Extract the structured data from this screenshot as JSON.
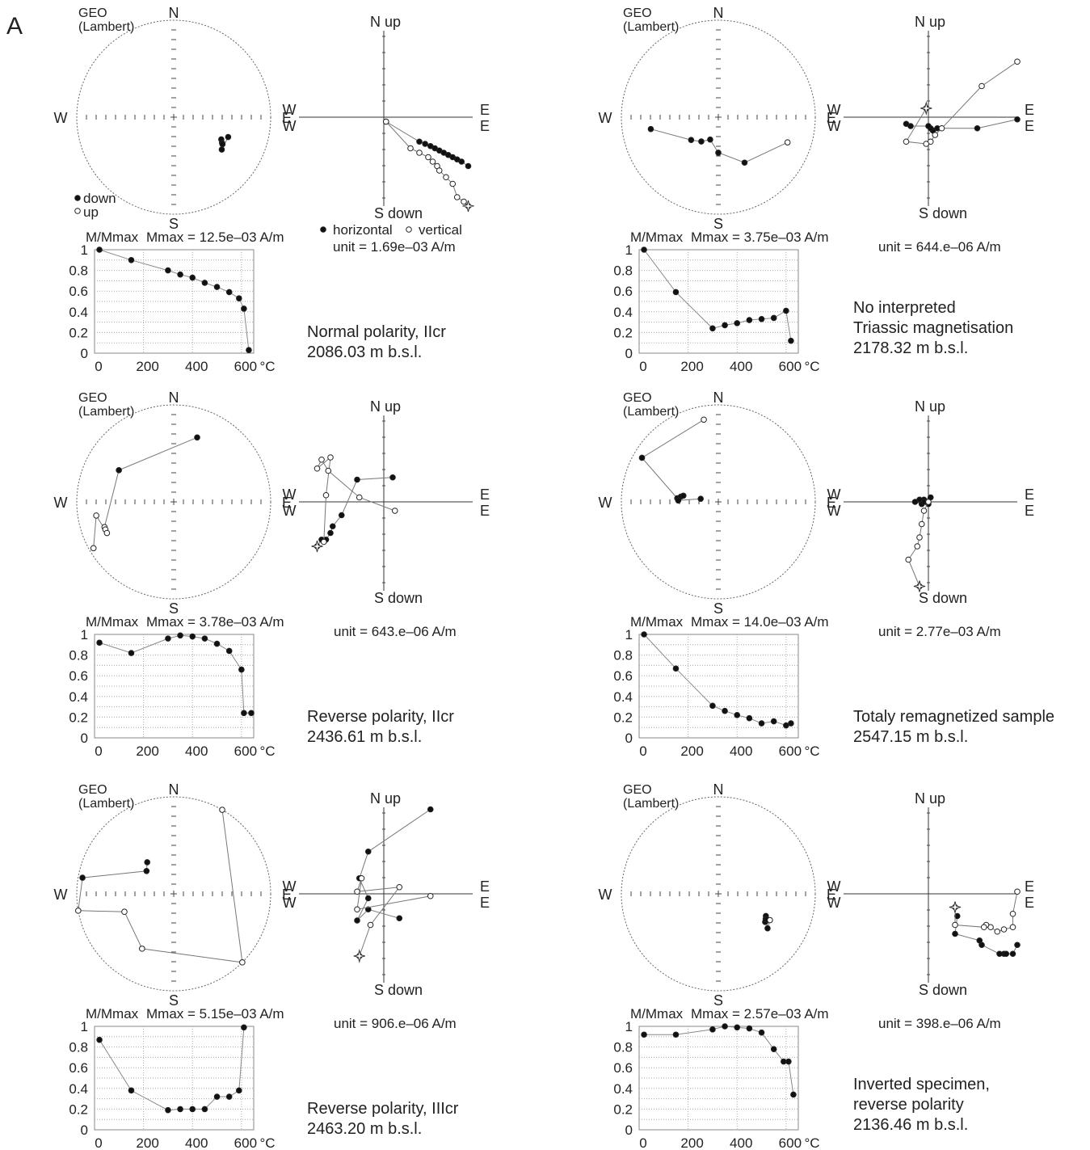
{
  "figure_label": "A",
  "common": {
    "geo": "GEO",
    "lambert": "(Lambert)",
    "dir": {
      "N": "N",
      "S": "S",
      "E": "E",
      "W": "W"
    },
    "nup": "N up",
    "sdown": "S down",
    "legend_down": "down",
    "legend_up": "up",
    "legend_horizontal": "horizontal",
    "legend_vertical": "vertical",
    "mag_label": "M/Mmax",
    "degC": "°C",
    "y_ticks": [
      "1",
      "0.8",
      "0.6",
      "0.4",
      "0.2",
      "0"
    ],
    "x_ticks": [
      "0",
      "200",
      "400",
      "600"
    ]
  },
  "chart_data": [
    {
      "type": "scatter",
      "title": "Normal polarity, IIcr",
      "depth": "2086.03 m b.s.l.",
      "unit": "unit = 1.69e–03 A/m",
      "mmax": "Mmax = 12.5e–03 A/m",
      "stereonet": [
        {
          "dec": 115,
          "inc": 45,
          "filled": true
        },
        {
          "dec": 118,
          "inc": 43,
          "filled": true
        },
        {
          "dec": 119,
          "inc": 42,
          "filled": true
        },
        {
          "dec": 124,
          "inc": 40,
          "filled": true
        },
        {
          "dec": 110,
          "inc": 40,
          "filled": true
        }
      ],
      "zijderveld": {
        "horizontal": [
          [
            0.05,
            -0.1
          ],
          [
            0.8,
            -0.55
          ],
          [
            0.93,
            -0.6
          ],
          [
            1.05,
            -0.65
          ],
          [
            1.15,
            -0.7
          ],
          [
            1.25,
            -0.75
          ],
          [
            1.35,
            -0.8
          ],
          [
            1.45,
            -0.85
          ],
          [
            1.55,
            -0.9
          ],
          [
            1.65,
            -0.95
          ],
          [
            1.75,
            -1.0
          ],
          [
            1.9,
            -1.1
          ]
        ],
        "vertical": [
          [
            0.05,
            -0.1
          ],
          [
            0.6,
            -0.7
          ],
          [
            0.8,
            -0.8
          ],
          [
            1.0,
            -0.9
          ],
          [
            1.1,
            -1.0
          ],
          [
            1.2,
            -1.1
          ],
          [
            1.25,
            -1.2
          ],
          [
            1.4,
            -1.35
          ],
          [
            1.55,
            -1.5
          ],
          [
            1.65,
            -1.8
          ],
          [
            1.8,
            -1.9
          ],
          [
            1.9,
            -2.0
          ]
        ],
        "start_star": "vertical"
      },
      "demag": {
        "temp": [
          20,
          150,
          300,
          350,
          400,
          450,
          500,
          550,
          590,
          610,
          630
        ],
        "m": [
          1.0,
          0.9,
          0.8,
          0.76,
          0.73,
          0.68,
          0.64,
          0.59,
          0.53,
          0.43,
          0.03
        ],
        "xlim": [
          0,
          650
        ],
        "ylim": [
          0,
          1
        ]
      }
    },
    {
      "type": "scatter",
      "title": "No interpreted",
      "title2": "Triassic magnetisation",
      "depth": "2178.32 m b.s.l.",
      "unit": "unit = 644.e–06 A/m",
      "mmax": "Mmax = 3.75e–03 A/m",
      "stereonet": [
        {
          "dec": 260,
          "inc": 30,
          "filled": true
        },
        {
          "dec": 230,
          "inc": 60,
          "filled": true
        },
        {
          "dec": 215,
          "inc": 65,
          "filled": true
        },
        {
          "dec": 200,
          "inc": 70,
          "filled": true
        },
        {
          "dec": 180,
          "inc": 60,
          "filled": true
        },
        {
          "dec": 150,
          "inc": 45,
          "filled": true
        },
        {
          "dec": 110,
          "inc": 25,
          "filled": false
        }
      ],
      "zijderveld": {
        "horizontal": [
          [
            2.0,
            -0.05
          ],
          [
            1.1,
            -0.25
          ],
          [
            0.2,
            -0.25
          ],
          [
            0.1,
            -0.3
          ],
          [
            0.05,
            -0.25
          ],
          [
            0.0,
            -0.2
          ],
          [
            -0.4,
            -0.2
          ],
          [
            -0.5,
            -0.15
          ]
        ],
        "vertical": [
          [
            2.0,
            1.25
          ],
          [
            1.2,
            0.7
          ],
          [
            0.3,
            -0.25
          ],
          [
            0.15,
            -0.4
          ],
          [
            0.05,
            -0.55
          ],
          [
            -0.05,
            -0.6
          ],
          [
            -0.5,
            -0.55
          ],
          [
            -0.05,
            0.2
          ]
        ],
        "start_star": "vertical"
      },
      "demag": {
        "temp": [
          20,
          150,
          300,
          350,
          400,
          450,
          500,
          550,
          600,
          620
        ],
        "m": [
          1.0,
          0.59,
          0.24,
          0.27,
          0.29,
          0.32,
          0.33,
          0.34,
          0.41,
          0.12
        ],
        "xlim": [
          0,
          650
        ],
        "ylim": [
          0,
          1
        ]
      }
    },
    {
      "type": "scatter",
      "title": "Reverse polarity, IIcr",
      "depth": "2436.61 m b.s.l.",
      "unit": "unit = 643.e–06 A/m",
      "mmax": "Mmax = 3.78e–03 A/m",
      "stereonet": [
        {
          "dec": 20,
          "inc": 30,
          "filled": true
        },
        {
          "dec": 300,
          "inc": 35,
          "filled": true
        },
        {
          "dec": 250,
          "inc": 25,
          "filled": false
        },
        {
          "dec": 248,
          "inc": 25,
          "filled": false
        },
        {
          "dec": 245,
          "inc": 25,
          "filled": false
        },
        {
          "dec": 260,
          "inc": 20,
          "filled": false
        },
        {
          "dec": 240,
          "inc": 5,
          "filled": false
        }
      ],
      "zijderveld": {
        "horizontal": [
          [
            0.2,
            0.55
          ],
          [
            -0.6,
            0.5
          ],
          [
            -0.95,
            -0.3
          ],
          [
            -1.15,
            -0.55
          ],
          [
            -1.2,
            -0.7
          ],
          [
            -1.3,
            -0.85
          ],
          [
            -1.4,
            -0.85
          ],
          [
            -1.5,
            -1.0
          ]
        ],
        "vertical": [
          [
            0.25,
            -0.2
          ],
          [
            -0.55,
            0.1
          ],
          [
            -1.25,
            0.7
          ],
          [
            -1.4,
            0.95
          ],
          [
            -1.5,
            0.75
          ],
          [
            -1.2,
            1.0
          ],
          [
            -1.3,
            0.15
          ],
          [
            -1.35,
            -0.9
          ]
        ],
        "start_star": "horizontal"
      },
      "demag": {
        "temp": [
          20,
          150,
          300,
          350,
          400,
          450,
          500,
          550,
          600,
          610,
          640
        ],
        "m": [
          0.92,
          0.82,
          0.96,
          0.99,
          0.98,
          0.96,
          0.91,
          0.84,
          0.66,
          0.24,
          0.24
        ],
        "xlim": [
          0,
          650
        ],
        "ylim": [
          0,
          1
        ]
      }
    },
    {
      "type": "scatter",
      "title": "Totaly remagnetized sample",
      "depth": "2547.15 m b.s.l.",
      "unit": "unit = 2.77e–03 A/m",
      "mmax": "Mmax = 14.0e–03 A/m",
      "stereonet": [
        {
          "dec": 350,
          "inc": 15,
          "filled": false
        },
        {
          "dec": 300,
          "inc": 10,
          "filled": true
        },
        {
          "dec": 275,
          "inc": 55,
          "filled": true
        },
        {
          "dec": 278,
          "inc": 58,
          "filled": true
        },
        {
          "dec": 280,
          "inc": 60,
          "filled": true
        },
        {
          "dec": 272,
          "inc": 56,
          "filled": true
        },
        {
          "dec": 280,
          "inc": 75,
          "filled": true
        }
      ],
      "zijderveld": {
        "horizontal": [
          [
            0.05,
            0.1
          ],
          [
            -0.1,
            0.05
          ],
          [
            -0.2,
            0.05
          ],
          [
            -0.3,
            0.0
          ],
          [
            -0.15,
            -0.05
          ],
          [
            -0.1,
            0.0
          ],
          [
            0.0,
            -0.05
          ]
        ],
        "vertical": [
          [
            0.0,
            0.0
          ],
          [
            -0.1,
            -0.2
          ],
          [
            -0.15,
            -0.5
          ],
          [
            -0.2,
            -0.8
          ],
          [
            -0.25,
            -1.0
          ],
          [
            -0.45,
            -1.3
          ],
          [
            -0.2,
            -1.9
          ]
        ],
        "start_star": "vertical"
      },
      "demag": {
        "temp": [
          20,
          150,
          300,
          350,
          400,
          450,
          500,
          550,
          600,
          620
        ],
        "m": [
          1.0,
          0.67,
          0.31,
          0.26,
          0.22,
          0.19,
          0.14,
          0.16,
          0.12,
          0.14
        ],
        "xlim": [
          0,
          650
        ],
        "ylim": [
          0,
          1
        ]
      }
    },
    {
      "type": "scatter",
      "title": "Reverse polarity, IIIcr",
      "depth": "2463.20 m b.s.l.",
      "unit": "unit = 906.e–06 A/m",
      "mmax": "Mmax = 5.15e–03 A/m",
      "stereonet": [
        {
          "dec": 320,
          "inc": 55,
          "filled": true
        },
        {
          "dec": 310,
          "inc": 60,
          "filled": true
        },
        {
          "dec": 280,
          "inc": 5,
          "filled": true
        },
        {
          "dec": 260,
          "inc": 0,
          "filled": false
        },
        {
          "dec": 250,
          "inc": 45,
          "filled": false
        },
        {
          "dec": 210,
          "inc": 35,
          "filled": false
        },
        {
          "dec": 135,
          "inc": 0,
          "filled": false
        },
        {
          "dec": 30,
          "inc": 0,
          "filled": false
        }
      ],
      "zijderveld": {
        "horizontal": [
          [
            1.05,
            1.9
          ],
          [
            -0.35,
            0.95
          ],
          [
            -0.55,
            0.35
          ],
          [
            -0.35,
            -0.1
          ],
          [
            -0.6,
            -0.6
          ],
          [
            -0.35,
            -0.35
          ],
          [
            0.35,
            -0.55
          ]
        ],
        "vertical": [
          [
            1.05,
            -0.05
          ],
          [
            -0.6,
            -0.35
          ],
          [
            -0.5,
            0.35
          ],
          [
            -0.6,
            0.05
          ],
          [
            0.35,
            0.15
          ],
          [
            -0.3,
            -0.7
          ],
          [
            -0.55,
            -1.4
          ]
        ],
        "start_star": "vertical"
      },
      "demag": {
        "temp": [
          20,
          150,
          300,
          350,
          400,
          450,
          500,
          550,
          590,
          610
        ],
        "m": [
          0.87,
          0.38,
          0.19,
          0.2,
          0.2,
          0.2,
          0.32,
          0.32,
          0.38,
          0.99
        ],
        "xlim": [
          0,
          650
        ],
        "ylim": [
          0,
          1
        ]
      }
    },
    {
      "type": "scatter",
      "title": "Inverted specimen,",
      "title2": "reverse polarity",
      "depth": "2136.46 m b.s.l.",
      "unit": "unit = 398.e–06 A/m",
      "mmax": "Mmax = 2.57e–03 A/m",
      "stereonet": [
        {
          "dec": 115,
          "inc": 45,
          "filled": true
        },
        {
          "dec": 118,
          "inc": 44,
          "filled": true
        },
        {
          "dec": 121,
          "inc": 43,
          "filled": true
        },
        {
          "dec": 118,
          "inc": 43,
          "filled": true
        },
        {
          "dec": 125,
          "inc": 38,
          "filled": true
        },
        {
          "dec": 117,
          "inc": 40,
          "filled": false
        }
      ],
      "zijderveld": {
        "horizontal": [
          [
            2.0,
            -1.15
          ],
          [
            1.9,
            -1.35
          ],
          [
            1.7,
            -1.35
          ],
          [
            1.75,
            -1.35
          ],
          [
            1.6,
            -1.35
          ],
          [
            1.2,
            -1.15
          ],
          [
            1.15,
            -1.05
          ],
          [
            0.6,
            -0.9
          ],
          [
            0.65,
            -0.5
          ]
        ],
        "vertical": [
          [
            2.0,
            0.05
          ],
          [
            1.9,
            -0.45
          ],
          [
            1.9,
            -0.75
          ],
          [
            1.7,
            -0.8
          ],
          [
            1.55,
            -0.85
          ],
          [
            1.4,
            -0.75
          ],
          [
            1.3,
            -0.7
          ],
          [
            1.25,
            -0.75
          ],
          [
            0.6,
            -0.7
          ],
          [
            0.6,
            -0.3
          ]
        ],
        "start_star": "vertical"
      },
      "demag": {
        "temp": [
          20,
          150,
          300,
          350,
          400,
          450,
          500,
          550,
          590,
          610,
          630
        ],
        "m": [
          0.92,
          0.92,
          0.97,
          1.0,
          0.99,
          0.98,
          0.94,
          0.78,
          0.66,
          0.66,
          0.34
        ],
        "xlim": [
          0,
          650
        ],
        "ylim": [
          0,
          1
        ]
      }
    }
  ]
}
